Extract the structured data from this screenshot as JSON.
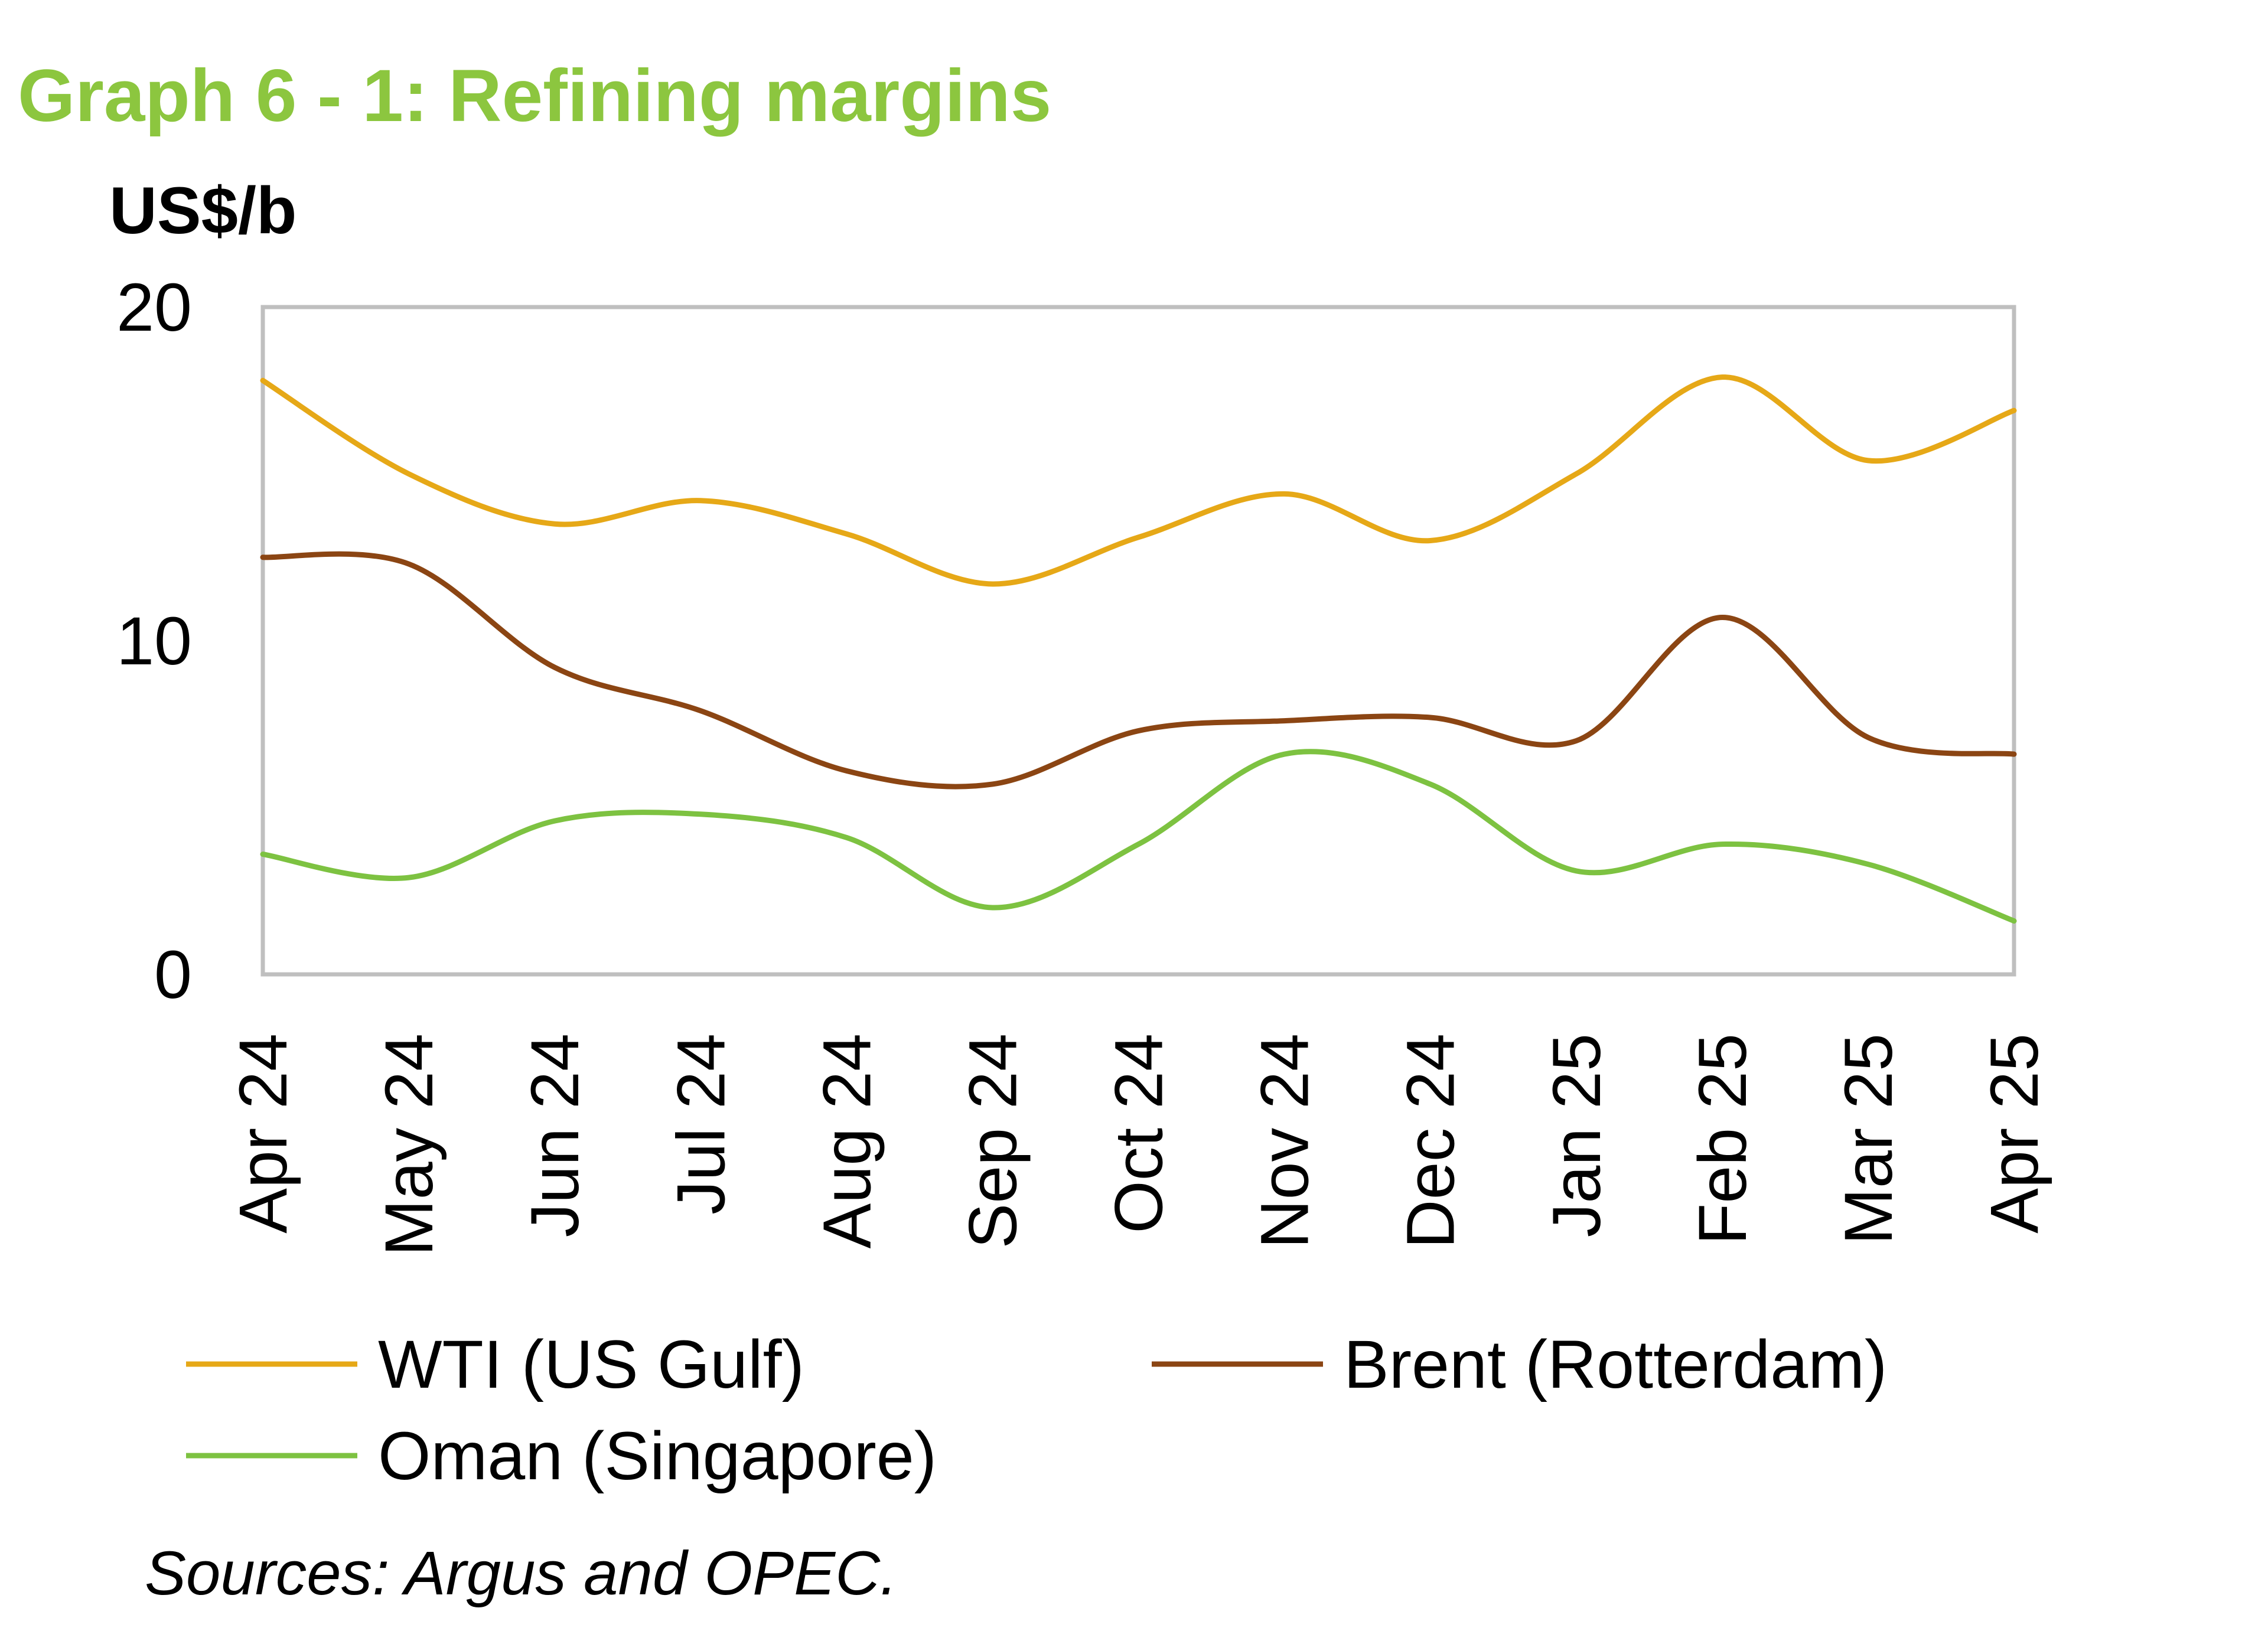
{
  "colors": {
    "title": "#8CC63F",
    "wti": "#E6A817",
    "brent": "#8B4513",
    "oman": "#7DC241",
    "axis_frame": "#BFBFBF"
  },
  "chart_data": {
    "type": "line",
    "title": "Graph 6 - 1: Refining margins",
    "ylabel": "US$/b",
    "xlabel": "",
    "ylim": [
      0,
      20
    ],
    "yticks": [
      "0",
      "10",
      "20"
    ],
    "categories": [
      "Apr 24",
      "May 24",
      "Jun 24",
      "Jul 24",
      "Aug 24",
      "Sep 24",
      "Oct 24",
      "Nov 24",
      "Dec 24",
      "Jan 25",
      "Feb 25",
      "Mar 25",
      "Apr 25"
    ],
    "series": [
      {
        "name": "WTI (US Gulf)",
        "color_key": "wti",
        "values": [
          17.8,
          15.0,
          13.5,
          14.2,
          13.2,
          11.7,
          13.1,
          14.4,
          13.0,
          15.0,
          17.9,
          15.4,
          16.9
        ]
      },
      {
        "name": "Brent (Rotterdam)",
        "color_key": "brent",
        "values": [
          12.5,
          12.3,
          9.2,
          7.9,
          6.1,
          5.7,
          7.3,
          7.6,
          7.7,
          7.0,
          10.7,
          7.1,
          6.6
        ]
      },
      {
        "name": "Oman (Singapore)",
        "color_key": "oman",
        "values": [
          3.6,
          2.9,
          4.6,
          4.8,
          4.1,
          2.0,
          3.9,
          6.6,
          5.7,
          3.1,
          3.9,
          3.3,
          1.6
        ]
      }
    ],
    "grid": false,
    "legend_position": "bottom",
    "source": "Sources: Argus and OPEC."
  }
}
